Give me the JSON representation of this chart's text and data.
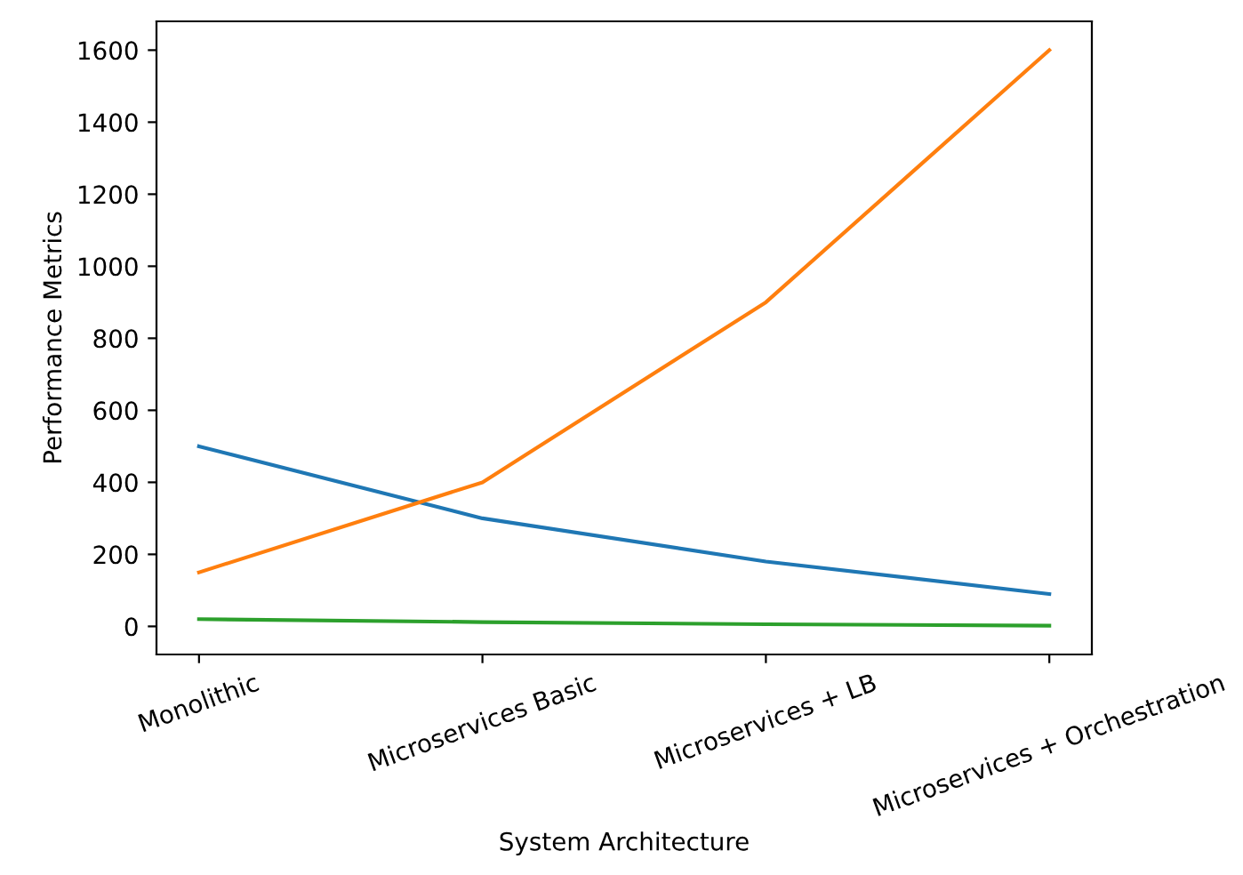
{
  "chart_data": {
    "type": "line",
    "xlabel": "System Architecture",
    "ylabel": "Performance Metrics",
    "categories": [
      "Monolithic",
      "Microservices Basic",
      "Microservices + LB",
      "Microservices + Orchestration"
    ],
    "series": [
      {
        "color": "#1f77b4",
        "values": [
          500,
          300,
          180,
          90
        ]
      },
      {
        "color": "#ff7f0e",
        "values": [
          150,
          400,
          900,
          1600
        ]
      },
      {
        "color": "#2ca02c",
        "values": [
          20,
          12,
          6,
          2
        ]
      }
    ],
    "ylim": [
      -78,
      1680
    ],
    "yticks": [
      0,
      200,
      400,
      600,
      800,
      1000,
      1200,
      1400,
      1600
    ],
    "grid": false,
    "legend": false
  }
}
